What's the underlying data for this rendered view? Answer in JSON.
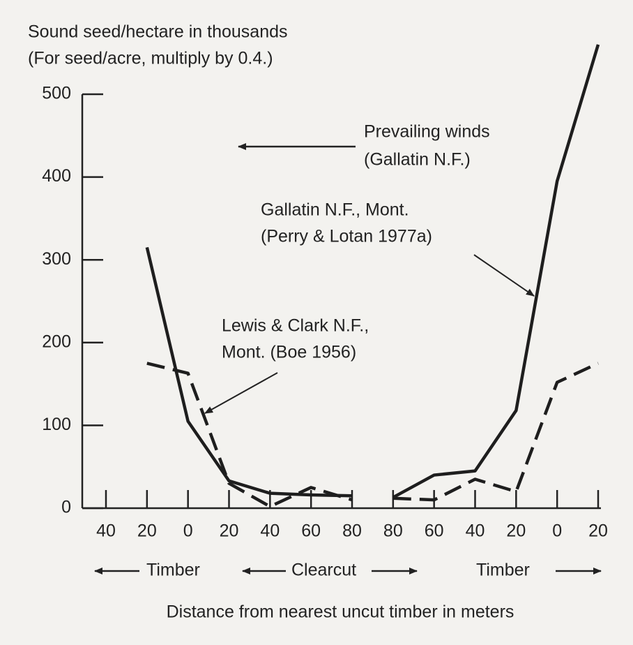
{
  "chart_data": {
    "type": "line",
    "y_label": [
      "Sound seed/hectare in thousands",
      "(For seed/acre, multiply by 0.4.)"
    ],
    "x_label": "Distance from nearest uncut timber in meters",
    "regions": [
      "Timber",
      "Clearcut",
      "Timber"
    ],
    "annotations": [
      "Prevailing winds",
      "(Gallatin N.F.)",
      "Gallatin N.F., Mont.",
      "(Perry & Lotan 1977a)",
      "Lewis & Clark N.F.,",
      "Mont. (Boe 1956)"
    ],
    "categories": [
      "40",
      "20",
      "0",
      "20",
      "40",
      "60",
      "80",
      "80",
      "60",
      "40",
      "20",
      "0",
      "20"
    ],
    "series": [
      {
        "color": "#1e1e1e",
        "dashed": false,
        "values": [
          null,
          315,
          105,
          33,
          18,
          16,
          15,
          null,
          null,
          null,
          null,
          null,
          null
        ]
      },
      {
        "color": "#1e1e1e",
        "dashed": false,
        "values": [
          null,
          null,
          null,
          null,
          null,
          null,
          null,
          13,
          40,
          45,
          118,
          395,
          560
        ]
      },
      {
        "color": "#1e1e1e",
        "dashed": true,
        "values": [
          null,
          175,
          163,
          30,
          2,
          25,
          10,
          null,
          null,
          null,
          null,
          null,
          null
        ]
      },
      {
        "color": "#1e1e1e",
        "dashed": true,
        "values": [
          null,
          null,
          null,
          null,
          null,
          null,
          null,
          12,
          10,
          35,
          20,
          152,
          175
        ]
      }
    ],
    "ylim": [
      0,
      500
    ],
    "yticks": [
      0,
      100,
      200,
      300,
      400,
      500
    ]
  }
}
